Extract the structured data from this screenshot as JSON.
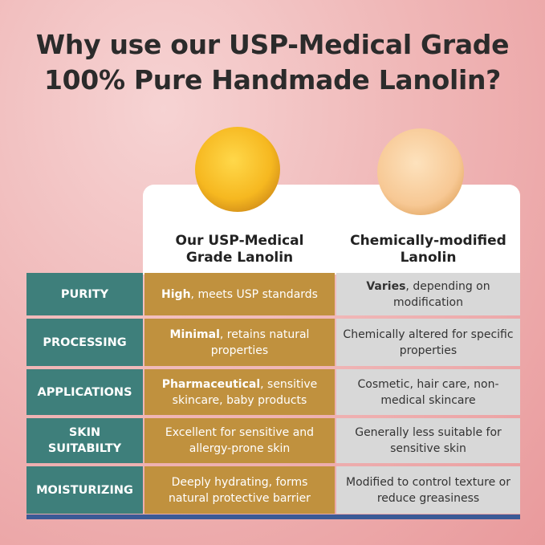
{
  "title_line1": "Why use our USP-Medical Grade",
  "title_line2": "100% Pure Handmade Lanolin?",
  "columns": {
    "ours_line1": "Our USP-Medical",
    "ours_line2": "Grade Lanolin",
    "theirs_line1": "Chemically-modified",
    "theirs_line2": "Lanolin"
  },
  "colors": {
    "label_bg": "#3e7f7b",
    "ours_bg": "#c0913e",
    "theirs_bg": "#d8d8d8",
    "bottom_bar": "#3b5a96"
  },
  "rows": [
    {
      "label": "PURITY",
      "ours_bold": "High",
      "ours_rest": ", meets USP standards",
      "theirs_bold": "Varies",
      "theirs_rest": ", depending on modification"
    },
    {
      "label": "PROCESSING",
      "ours_bold": "Minimal",
      "ours_rest": ", retains natural properties",
      "theirs_bold": "",
      "theirs_rest": "Chemically altered for specific properties"
    },
    {
      "label": "APPLICATIONS",
      "ours_bold": "Pharmaceutical",
      "ours_rest": ", sensitive skincare, baby products",
      "theirs_bold": "",
      "theirs_rest": "Cosmetic, hair care, non-medical skincare"
    },
    {
      "label": "SKIN SUITABILTY",
      "ours_bold": "",
      "ours_rest": "Excellent for sensitive and allergy-prone skin",
      "theirs_bold": "",
      "theirs_rest": "Generally less suitable for sensitive skin"
    },
    {
      "label": "MOISTURIZING",
      "ours_bold": "",
      "ours_rest": "Deeply hydrating, forms natural protective barrier",
      "theirs_bold": "",
      "theirs_rest": "Modified to control texture or reduce greasiness"
    }
  ]
}
